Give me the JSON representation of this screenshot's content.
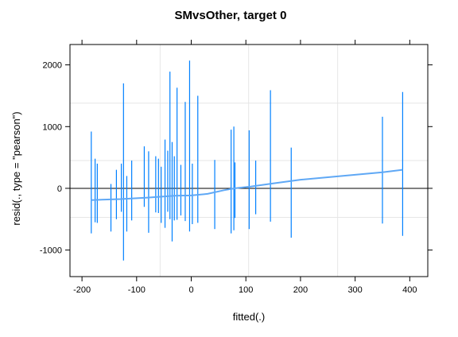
{
  "colors": {
    "spike": "#0080ff",
    "smooth": "#5fa8f5",
    "grid": "#e6e6e6",
    "zero_line": "#000000",
    "frame": "#000000"
  },
  "chart_data": {
    "type": "scatter",
    "title": "SMvsOther, target 0",
    "xlabel": "fitted(.)",
    "ylabel": "resid(., type = \"pearson\")",
    "xlim": [
      -222,
      433
    ],
    "ylim": [
      -1430,
      2330
    ],
    "x_ticks": [
      -200,
      -100,
      0,
      100,
      200,
      300,
      400
    ],
    "x_tick_labels": [
      "-200",
      "-100",
      "0",
      "100",
      "200",
      "300",
      "400"
    ],
    "y_ticks": [
      -1000,
      0,
      1000,
      2000
    ],
    "y_tick_labels": [
      "-1000",
      "0",
      "1000",
      "2000"
    ],
    "grid_x": [
      -57,
      105,
      268
    ],
    "grid_y": [
      -470,
      450,
      1380
    ],
    "reference_line_y": 0,
    "residual_spikes": [
      {
        "x": -183,
        "min": -730,
        "max": 920
      },
      {
        "x": -176,
        "min": -550,
        "max": 480
      },
      {
        "x": -172,
        "min": -560,
        "max": 400
      },
      {
        "x": -147,
        "min": -700,
        "max": 70
      },
      {
        "x": -137,
        "min": -500,
        "max": 300
      },
      {
        "x": -128,
        "min": -380,
        "max": 400
      },
      {
        "x": -124,
        "min": -1170,
        "max": 1700
      },
      {
        "x": -118,
        "min": -700,
        "max": 200
      },
      {
        "x": -109,
        "min": -520,
        "max": 450
      },
      {
        "x": -86,
        "min": -300,
        "max": 680
      },
      {
        "x": -78,
        "min": -720,
        "max": 600
      },
      {
        "x": -65,
        "min": -390,
        "max": 520
      },
      {
        "x": -60,
        "min": -400,
        "max": 480
      },
      {
        "x": -55,
        "min": -560,
        "max": 350
      },
      {
        "x": -48,
        "min": -640,
        "max": 790
      },
      {
        "x": -43,
        "min": -380,
        "max": 610
      },
      {
        "x": -39,
        "min": -500,
        "max": 1890
      },
      {
        "x": -35,
        "min": -860,
        "max": 750
      },
      {
        "x": -31,
        "min": -520,
        "max": 520
      },
      {
        "x": -26,
        "min": -510,
        "max": 1630
      },
      {
        "x": -19,
        "min": -440,
        "max": 380
      },
      {
        "x": -11,
        "min": -530,
        "max": 1400
      },
      {
        "x": -3,
        "min": -700,
        "max": 2070
      },
      {
        "x": 2,
        "min": -580,
        "max": 400
      },
      {
        "x": 12,
        "min": -560,
        "max": 1500
      },
      {
        "x": 43,
        "min": -660,
        "max": 460
      },
      {
        "x": 73,
        "min": -730,
        "max": 950
      },
      {
        "x": 78,
        "min": -680,
        "max": 1000
      },
      {
        "x": 80,
        "min": -480,
        "max": 420
      },
      {
        "x": 106,
        "min": -660,
        "max": 940
      },
      {
        "x": 118,
        "min": -420,
        "max": 450
      },
      {
        "x": 145,
        "min": -540,
        "max": 1590
      },
      {
        "x": 183,
        "min": -800,
        "max": 660
      },
      {
        "x": 350,
        "min": -570,
        "max": 1160
      },
      {
        "x": 387,
        "min": -770,
        "max": 1560
      }
    ],
    "smooth_line": {
      "x": [
        -183,
        -130,
        -80,
        -30,
        0,
        30,
        60,
        80,
        110,
        150,
        200,
        250,
        300,
        350,
        387
      ],
      "y": [
        -190,
        -175,
        -150,
        -120,
        -115,
        -90,
        -30,
        0,
        30,
        80,
        140,
        180,
        220,
        260,
        300
      ]
    }
  }
}
